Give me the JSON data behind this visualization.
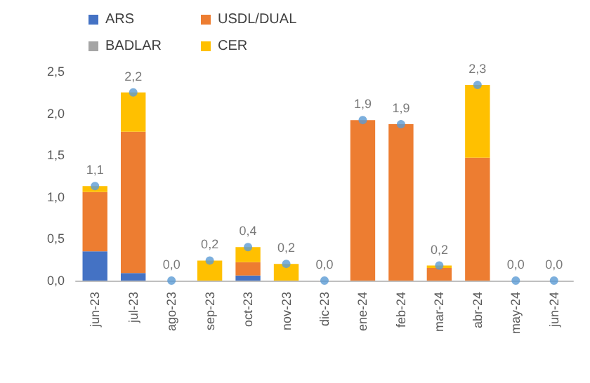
{
  "chart_data": {
    "type": "bar",
    "stacked": true,
    "categories": [
      "jun-23",
      "jul-23",
      "ago-23",
      "sep-23",
      "oct-23",
      "nov-23",
      "dic-23",
      "ene-24",
      "feb-24",
      "mar-24",
      "abr-24",
      "may-24",
      "jun-24"
    ],
    "series": [
      {
        "name": "ARS",
        "color": "#4472c4",
        "values": [
          0.35,
          0.09,
          0,
          0,
          0.06,
          0,
          0,
          0,
          0,
          0,
          0,
          0,
          0
        ]
      },
      {
        "name": "USDL/DUAL",
        "color": "#ed7d31",
        "values": [
          0.71,
          1.69,
          0,
          0,
          0.16,
          0,
          0,
          1.92,
          1.87,
          0.15,
          1.47,
          0,
          0
        ]
      },
      {
        "name": "BADLAR",
        "color": "#a5a5a5",
        "values": [
          0,
          0,
          0,
          0,
          0,
          0,
          0,
          0,
          0,
          0,
          0,
          0,
          0
        ]
      },
      {
        "name": "CER",
        "color": "#ffc000",
        "values": [
          0.07,
          0.47,
          0,
          0.24,
          0.18,
          0.2,
          0,
          0,
          0,
          0.03,
          0.87,
          0,
          0
        ]
      },
      {
        "type": "scatter",
        "color": "#5b9bd5",
        "marker": "circle",
        "values": [
          1.13,
          2.25,
          0,
          0.24,
          0.4,
          0.2,
          0,
          1.92,
          1.87,
          0.18,
          2.34,
          0,
          0
        ],
        "value_labels": [
          "1,1",
          "2,2",
          "0,0",
          "0,2",
          "0,4",
          "0,2",
          "0,0",
          "1,9",
          "1,9",
          "0,2",
          "2,3",
          "0,0",
          "0,0"
        ]
      }
    ],
    "ylim": [
      0,
      2.5
    ],
    "yticks": [
      {
        "value": 0,
        "label": "0,0"
      },
      {
        "value": 0.5,
        "label": "0,5"
      },
      {
        "value": 1,
        "label": "1,0"
      },
      {
        "value": 1.5,
        "label": "1,5"
      },
      {
        "value": 2,
        "label": "2,0"
      },
      {
        "value": 2.5,
        "label": "2,5"
      }
    ],
    "grid": false,
    "legend": "top left"
  }
}
